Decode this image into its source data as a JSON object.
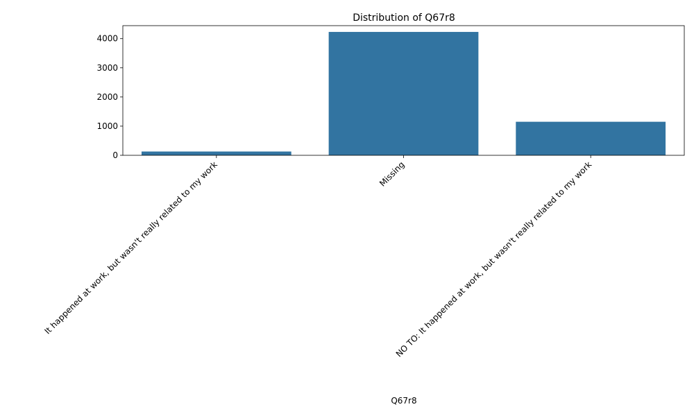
{
  "chart_data": {
    "type": "bar",
    "title": "Distribution of Q67r8",
    "xlabel": "Q67r8",
    "ylabel": "",
    "categories": [
      "It happened at work, but wasn't really related to my work",
      "Missing",
      "NO TO: It happened at work, but wasn't really related to my work"
    ],
    "values": [
      130,
      4230,
      1150
    ],
    "ylim": [
      0,
      4445
    ],
    "yticks": [
      0,
      1000,
      2000,
      3000,
      4000
    ],
    "bar_color": "#3274a1",
    "grid": false,
    "legend": "none"
  }
}
